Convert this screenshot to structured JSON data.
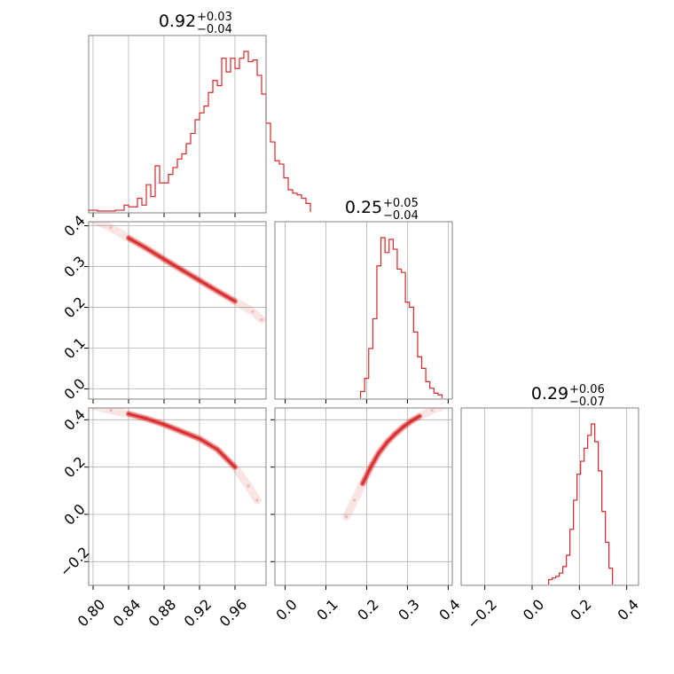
{
  "chart_data": {
    "type": "corner",
    "color": "#d62728",
    "parameters": [
      {
        "title_value": "0.92",
        "err_plus": "+0.03",
        "err_minus": "−0.04",
        "range": [
          0.795,
          0.995
        ],
        "ticks": [
          0.8,
          0.84,
          0.88,
          0.92,
          0.96
        ],
        "tick_labels": [
          "0.80",
          "0.84",
          "0.88",
          "0.92",
          "0.96"
        ],
        "hist_start": 0.795,
        "hist_width": 0.005,
        "hist_values": [
          1,
          1,
          0.5,
          0.5,
          0.5,
          0.5,
          1,
          1,
          4,
          3,
          3,
          8,
          4,
          16,
          9,
          27,
          17,
          17,
          22,
          26,
          31,
          34,
          40,
          46,
          54,
          58,
          62,
          70,
          77,
          74,
          90,
          82,
          90,
          84,
          90,
          94,
          88,
          89,
          80,
          69,
          52,
          41,
          30,
          28,
          20,
          13,
          11,
          10,
          8,
          5
        ]
      },
      {
        "title_value": "0.25",
        "err_plus": "+0.05",
        "err_minus": "−0.04",
        "range": [
          -0.025,
          0.41
        ],
        "ticks": [
          0.0,
          0.1,
          0.2,
          0.3,
          0.4
        ],
        "tick_labels": [
          "0.0",
          "0.1",
          "0.2",
          "0.3",
          "0.4"
        ],
        "hist_start": 0.185,
        "hist_width": 0.01,
        "hist_values": [
          4,
          12,
          30,
          48,
          80,
          97,
          88,
          96,
          90,
          78,
          76,
          58,
          55,
          40,
          25,
          18,
          10,
          6,
          3,
          2
        ]
      },
      {
        "title_value": "0.29",
        "err_plus": "+0.06",
        "err_minus": "−0.07",
        "range": [
          -0.3,
          0.45
        ],
        "ticks": [
          -0.2,
          0.0,
          0.2,
          0.4
        ],
        "tick_labels": [
          "−0.2",
          "0.0",
          "0.2",
          "0.4"
        ],
        "hist_start": 0.07,
        "hist_width": 0.015,
        "hist_values": [
          3,
          4,
          5,
          7,
          11,
          18,
          34,
          52,
          68,
          76,
          84,
          92,
          99,
          88,
          70,
          45,
          26,
          10
        ]
      }
    ],
    "pairs": [
      {
        "row": 1,
        "col": 0,
        "points": [
          [
            0.8,
            0.415
          ],
          [
            0.82,
            0.395
          ],
          [
            0.84,
            0.37
          ],
          [
            0.86,
            0.345
          ],
          [
            0.88,
            0.318
          ],
          [
            0.9,
            0.292
          ],
          [
            0.92,
            0.266
          ],
          [
            0.94,
            0.24
          ],
          [
            0.96,
            0.215
          ],
          [
            0.98,
            0.19
          ],
          [
            0.99,
            0.17
          ]
        ]
      },
      {
        "row": 2,
        "col": 0,
        "points": [
          [
            0.8,
            0.46
          ],
          [
            0.82,
            0.44
          ],
          [
            0.84,
            0.425
          ],
          [
            0.86,
            0.405
          ],
          [
            0.88,
            0.38
          ],
          [
            0.9,
            0.35
          ],
          [
            0.92,
            0.32
          ],
          [
            0.94,
            0.275
          ],
          [
            0.96,
            0.2
          ],
          [
            0.975,
            0.12
          ],
          [
            0.985,
            0.06
          ]
        ]
      },
      {
        "row": 2,
        "col": 1,
        "points": [
          [
            0.15,
            -0.01
          ],
          [
            0.17,
            0.06
          ],
          [
            0.19,
            0.13
          ],
          [
            0.21,
            0.2
          ],
          [
            0.23,
            0.26
          ],
          [
            0.25,
            0.305
          ],
          [
            0.27,
            0.34
          ],
          [
            0.29,
            0.37
          ],
          [
            0.31,
            0.395
          ],
          [
            0.33,
            0.415
          ],
          [
            0.36,
            0.44
          ],
          [
            0.39,
            0.46
          ]
        ]
      }
    ],
    "grid": true
  }
}
